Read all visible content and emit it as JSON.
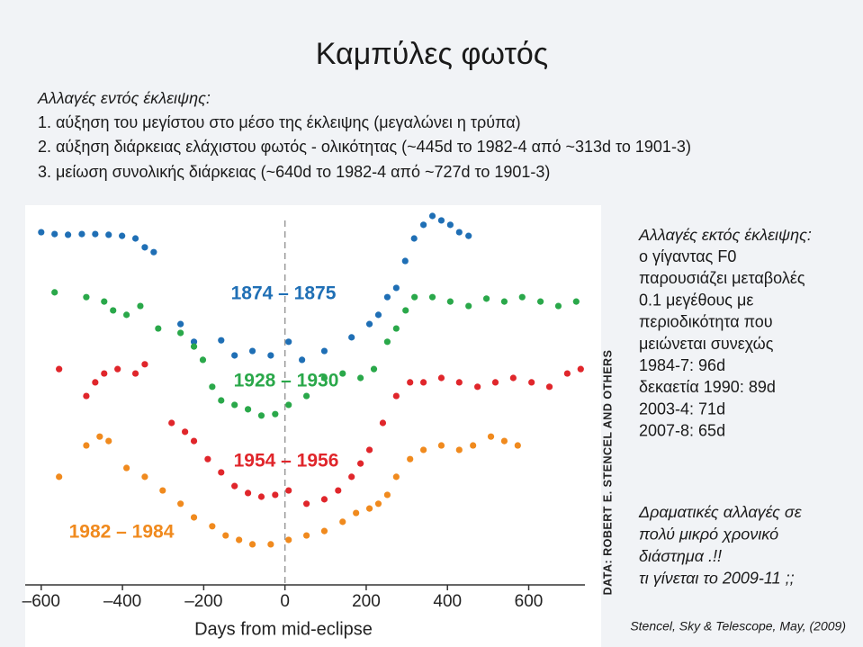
{
  "slide": {
    "title": "Καμπύλες φωτός",
    "intro": [
      "Αλλαγές εντός έκλειψης:",
      "1. αύξηση του μεγίστου στο μέσο της έκλειψης (μεγαλώνει η τρύπα)",
      "2. αύξηση διάρκειας ελάχιστου φωτός - ολικότητας (~445d το 1982-4 από ~313d το 1901-3)",
      "3. μείωση συνολικής διάρκειας (~640d το 1982-4 από ~727d το 1901-3)"
    ],
    "side": [
      "Αλλαγές εκτός έκλειψης:",
      "ο γίγαντας F0",
      "παρουσιάζει μεταβολές",
      "0.1 μεγέθους με",
      "περιοδικότητα που",
      "μειώνεται συνεχώς",
      "1984-7: 96d",
      "δεκαετία 1990: 89d",
      "2003-4: 71d",
      "2007-8: 65d"
    ],
    "conclusion": [
      "Δραματικές αλλαγές σε",
      "πολύ μικρό χρονικό",
      "διάστημα .!!",
      "τι γίνεται το 2009-11 ;;"
    ],
    "credit": "Stencel, Sky & Telescope, May, (2009)"
  },
  "chart_data": {
    "type": "scatter",
    "xlabel": "Days from mid-eclipse",
    "source": "DATA: ROBERT E. STENCEL AND OTHERS",
    "xlim": [
      -635,
      765
    ],
    "ylim": [
      0,
      100
    ],
    "vline": 0,
    "xticks": [
      {
        "value": -600,
        "label": "–600"
      },
      {
        "value": -400,
        "label": "–400"
      },
      {
        "value": -200,
        "label": "–200"
      },
      0,
      200,
      400,
      600
    ],
    "series": [
      {
        "name": "1874 – 1875",
        "color": "#1f6fb5",
        "x": [
          -600,
          -567,
          -534,
          -500,
          -467,
          -434,
          -401,
          -368,
          -345,
          -323,
          -257,
          -224,
          -157,
          -124,
          -80,
          -35,
          9,
          42,
          97,
          164,
          208,
          230,
          252,
          274,
          296,
          318,
          341,
          363,
          385,
          407,
          429,
          452
        ],
        "values": [
          95.6,
          95.1,
          94.9,
          95.1,
          95.1,
          94.9,
          94.6,
          93.9,
          91.5,
          90.2,
          70.7,
          65.9,
          66.3,
          62.2,
          63.4,
          62.2,
          65.9,
          61,
          63.4,
          67.1,
          70.7,
          73.2,
          78,
          80.5,
          87.8,
          93.9,
          97.6,
          100,
          98.8,
          97.6,
          95.6,
          94.6
        ]
      },
      {
        "name": "1928 – 1930",
        "color": "#2aa84a",
        "x": [
          -567,
          -489,
          -445,
          -423,
          -390,
          -356,
          -312,
          -257,
          -224,
          -202,
          -179,
          -157,
          -124,
          -91,
          -58,
          -24,
          9,
          53,
          97,
          142,
          186,
          219,
          252,
          274,
          297,
          319,
          363,
          407,
          452,
          496,
          540,
          584,
          629,
          673,
          717
        ],
        "values": [
          79.3,
          78,
          76.8,
          74.4,
          73.2,
          75.6,
          69.5,
          68.3,
          64.6,
          61,
          53.7,
          50,
          48.8,
          47.6,
          45.9,
          46.3,
          48.8,
          51.2,
          56.1,
          57.3,
          56.1,
          58.5,
          65.9,
          69.5,
          74.4,
          78,
          78,
          76.8,
          75.6,
          77.6,
          76.8,
          78,
          76.8,
          75.6,
          76.8
        ]
      },
      {
        "name": "1954 – 1956",
        "color": "#e0262b",
        "x": [
          -556,
          -489,
          -467,
          -445,
          -412,
          -368,
          -345,
          -279,
          -246,
          -224,
          -190,
          -157,
          -124,
          -91,
          -58,
          -24,
          9,
          53,
          97,
          131,
          164,
          186,
          208,
          241,
          274,
          308,
          341,
          385,
          429,
          474,
          518,
          562,
          607,
          651,
          695,
          728
        ],
        "values": [
          58.5,
          51.2,
          54.9,
          57.3,
          58.5,
          57.3,
          59.8,
          43.9,
          41.5,
          39,
          34.1,
          30.5,
          26.8,
          24.9,
          23.9,
          24.4,
          25.6,
          22,
          23.2,
          25.6,
          29.3,
          32.9,
          36.6,
          43.9,
          51.2,
          54.9,
          54.9,
          56.1,
          54.9,
          53.7,
          54.9,
          56.1,
          54.9,
          53.7,
          57.3,
          58.5
        ]
      },
      {
        "name": "1982 – 1984",
        "color": "#f08a1e",
        "x": [
          -556,
          -489,
          -456,
          -434,
          -390,
          -345,
          -301,
          -257,
          -224,
          -179,
          -146,
          -113,
          -80,
          -35,
          9,
          53,
          97,
          142,
          175,
          208,
          230,
          252,
          274,
          308,
          341,
          385,
          429,
          463,
          507,
          540,
          573
        ],
        "values": [
          29.3,
          37.8,
          40.2,
          39,
          31.7,
          29.3,
          25.6,
          22,
          18.3,
          15.9,
          13.4,
          12.2,
          11,
          11,
          12.2,
          13.4,
          14.6,
          17.1,
          19.5,
          20.7,
          22,
          24.4,
          29.3,
          34.1,
          36.6,
          37.8,
          36.6,
          37.8,
          40.2,
          39,
          37.8
        ]
      }
    ]
  }
}
